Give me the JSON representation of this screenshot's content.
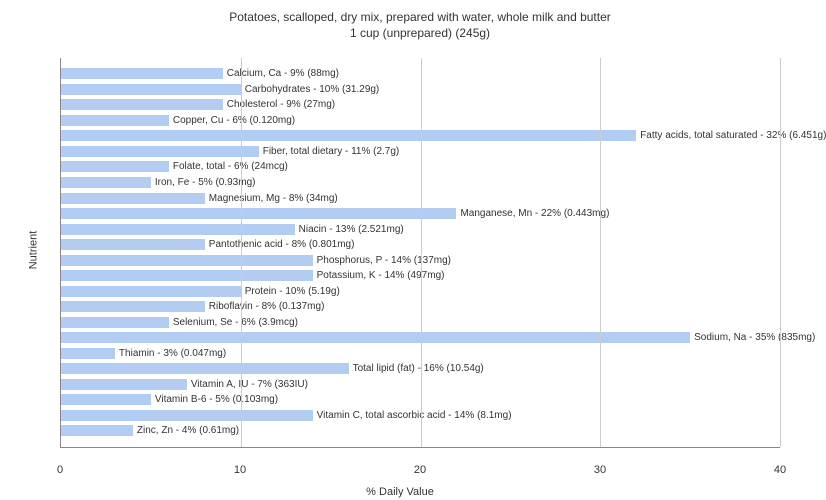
{
  "chart": {
    "type": "bar-horizontal",
    "title": "Potatoes, scalloped, dry mix, prepared with water, whole milk and butter",
    "subtitle": "1 cup (unprepared) (245g)",
    "title_fontsize": 12,
    "x_label": "% Daily Value",
    "y_label": "Nutrient",
    "label_fontsize": 11,
    "bar_color": "#b3cdf2",
    "background_color": "#ffffff",
    "grid_color": "#cccccc",
    "border_color": "#888888",
    "text_color": "#333333",
    "bar_label_fontsize": 10,
    "xlim": [
      0,
      40
    ],
    "xtick_step": 10,
    "xticks": [
      0,
      10,
      20,
      30,
      40
    ],
    "bars": [
      {
        "label": "Calcium, Ca - 9% (88mg)",
        "value": 9
      },
      {
        "label": "Carbohydrates - 10% (31.29g)",
        "value": 10
      },
      {
        "label": "Cholesterol - 9% (27mg)",
        "value": 9
      },
      {
        "label": "Copper, Cu - 6% (0.120mg)",
        "value": 6
      },
      {
        "label": "Fatty acids, total saturated - 32% (6.451g)",
        "value": 32
      },
      {
        "label": "Fiber, total dietary - 11% (2.7g)",
        "value": 11
      },
      {
        "label": "Folate, total - 6% (24mcg)",
        "value": 6
      },
      {
        "label": "Iron, Fe - 5% (0.93mg)",
        "value": 5
      },
      {
        "label": "Magnesium, Mg - 8% (34mg)",
        "value": 8
      },
      {
        "label": "Manganese, Mn - 22% (0.443mg)",
        "value": 22
      },
      {
        "label": "Niacin - 13% (2.521mg)",
        "value": 13
      },
      {
        "label": "Pantothenic acid - 8% (0.801mg)",
        "value": 8
      },
      {
        "label": "Phosphorus, P - 14% (137mg)",
        "value": 14
      },
      {
        "label": "Potassium, K - 14% (497mg)",
        "value": 14
      },
      {
        "label": "Protein - 10% (5.19g)",
        "value": 10
      },
      {
        "label": "Riboflavin - 8% (0.137mg)",
        "value": 8
      },
      {
        "label": "Selenium, Se - 6% (3.9mcg)",
        "value": 6
      },
      {
        "label": "Sodium, Na - 35% (835mg)",
        "value": 35
      },
      {
        "label": "Thiamin - 3% (0.047mg)",
        "value": 3
      },
      {
        "label": "Total lipid (fat) - 16% (10.54g)",
        "value": 16
      },
      {
        "label": "Vitamin A, IU - 7% (363IU)",
        "value": 7
      },
      {
        "label": "Vitamin B-6 - 5% (0.103mg)",
        "value": 5
      },
      {
        "label": "Vitamin C, total ascorbic acid - 14% (8.1mg)",
        "value": 14
      },
      {
        "label": "Zinc, Zn - 4% (0.61mg)",
        "value": 4
      }
    ]
  }
}
